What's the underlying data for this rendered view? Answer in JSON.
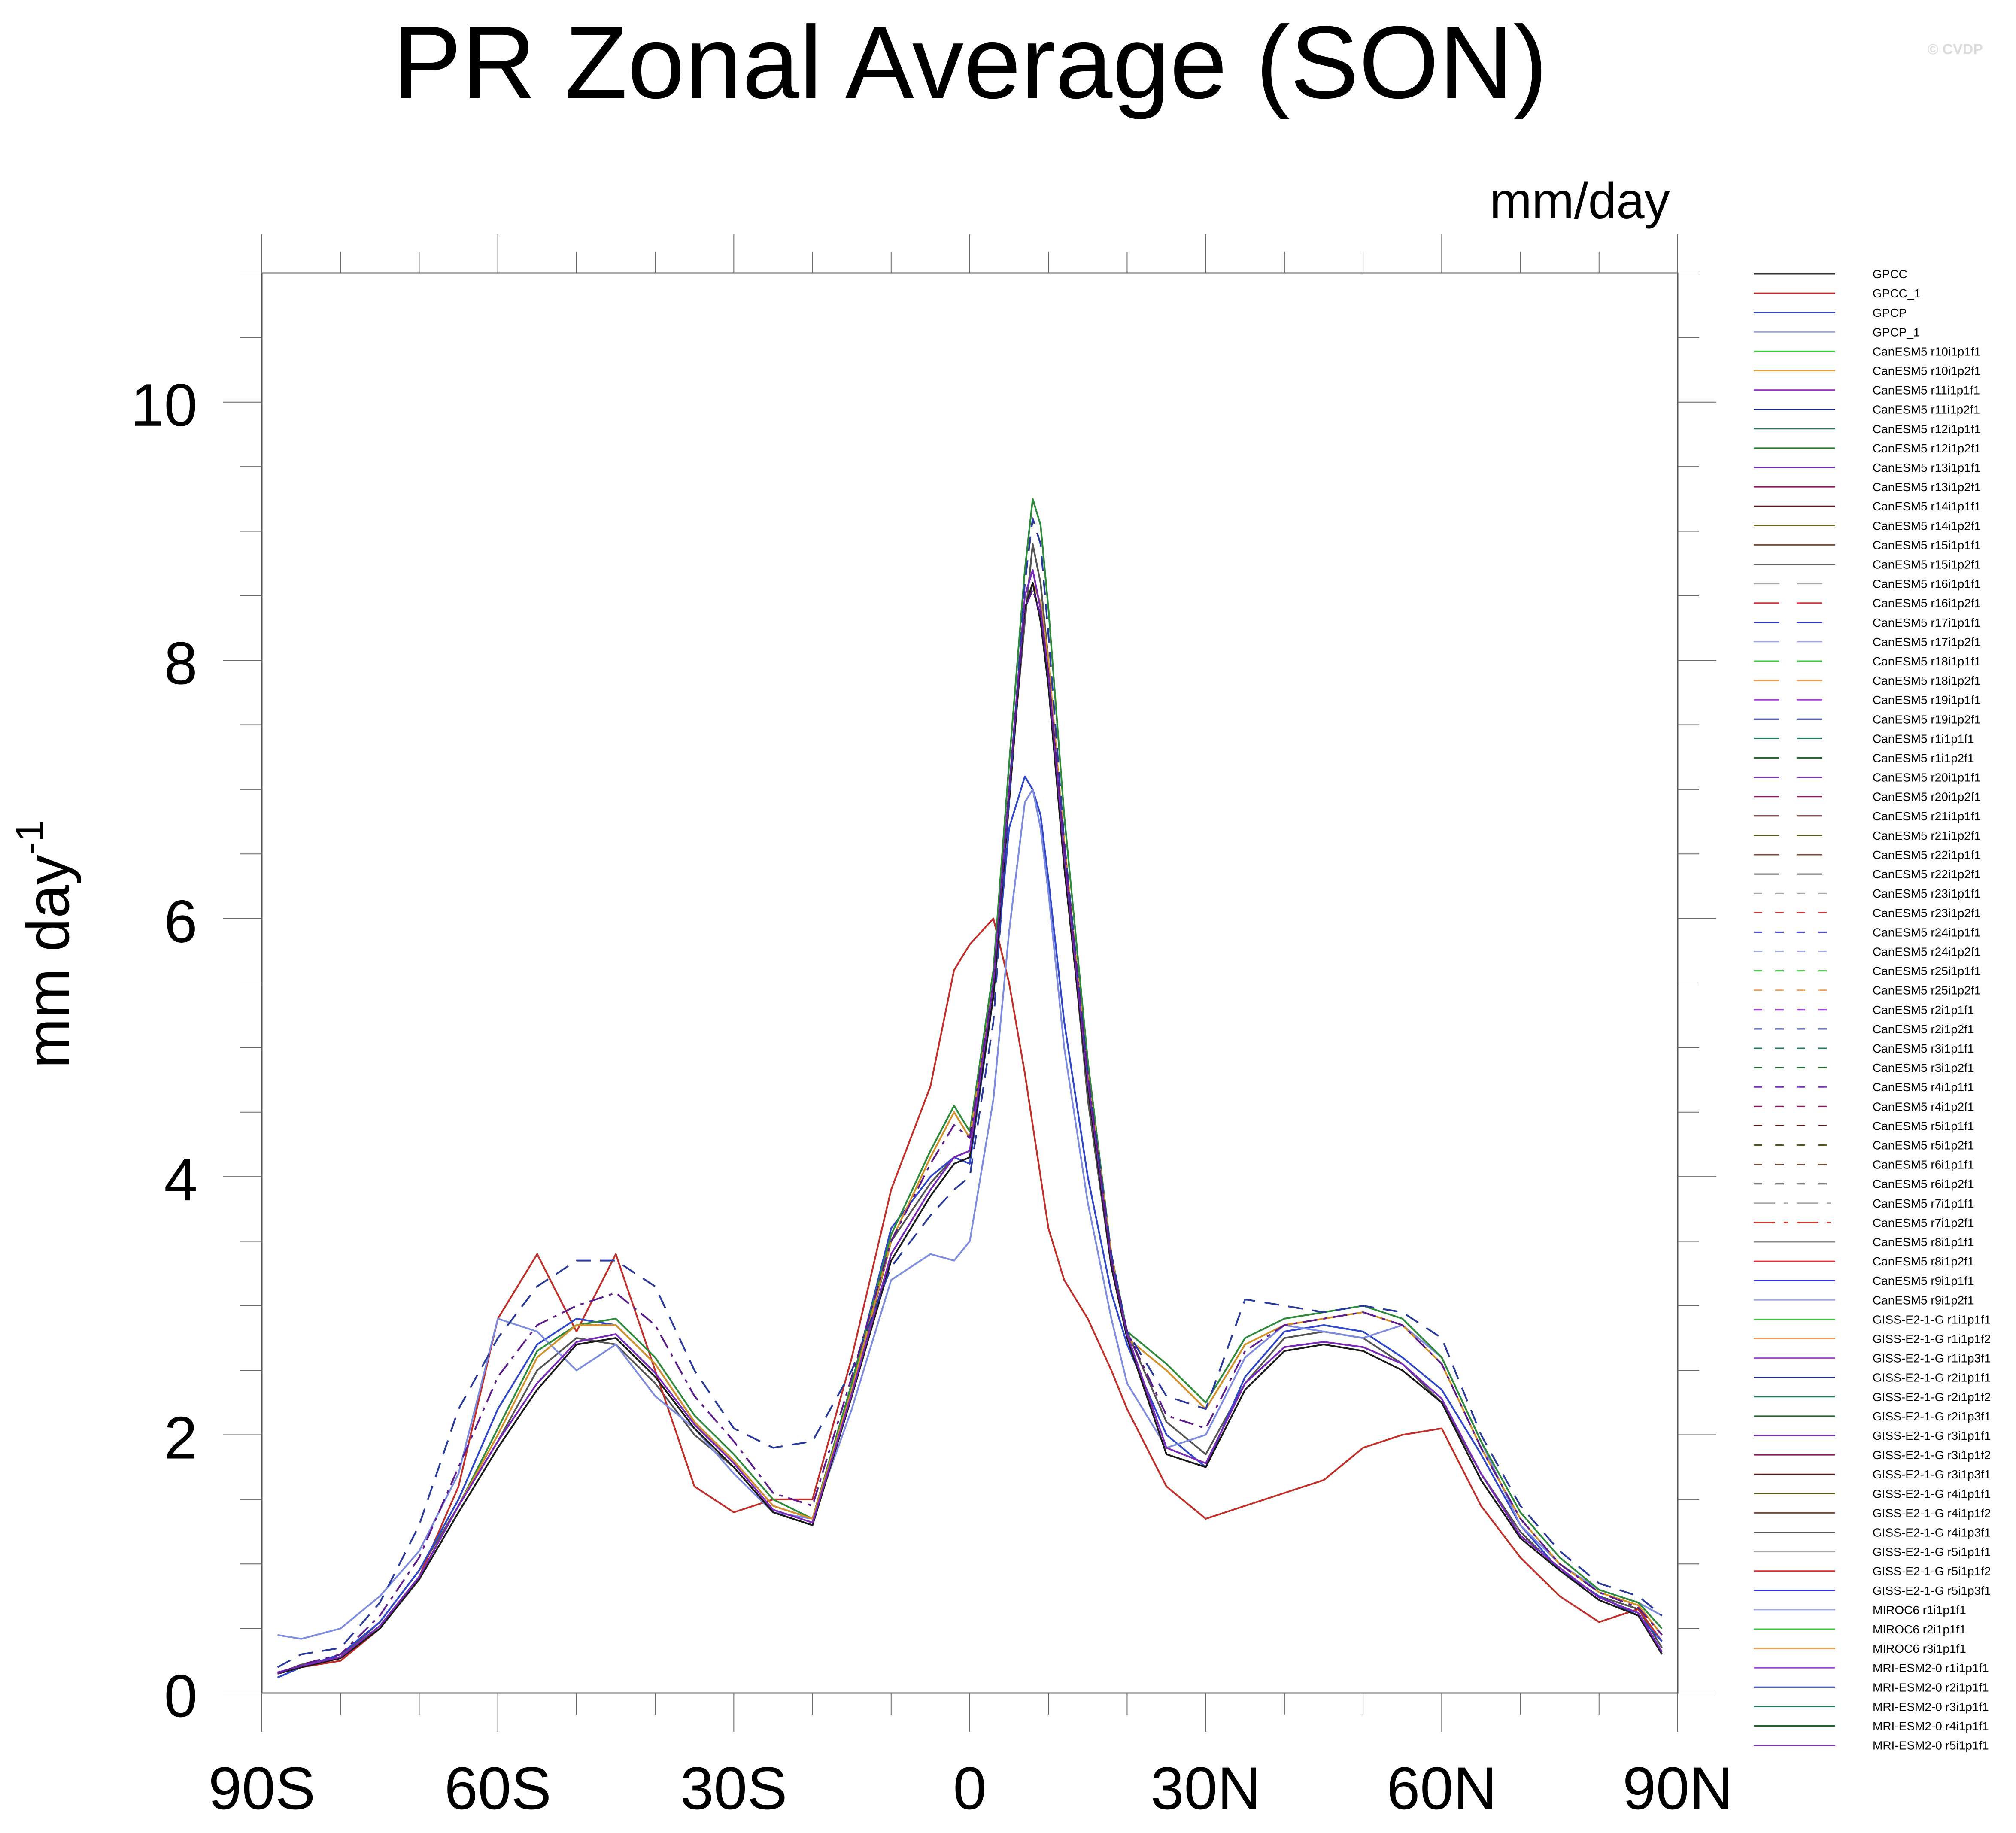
{
  "title": "PR Zonal Average (SON)",
  "watermark": "© CVDP",
  "units": "mm/day",
  "chart_data": {
    "type": "line",
    "title": "PR Zonal Average (SON)",
    "subtitle": "mm/day",
    "ylabel": "mm day",
    "ylabel_exponent": "-1",
    "xlabel": "",
    "xlim": [
      -90,
      90
    ],
    "ylim": [
      0,
      11
    ],
    "x_ticks": [
      {
        "value": -90,
        "label": "90S"
      },
      {
        "value": -60,
        "label": "60S"
      },
      {
        "value": -30,
        "label": "30S"
      },
      {
        "value": 0,
        "label": "0"
      },
      {
        "value": 30,
        "label": "30N"
      },
      {
        "value": 60,
        "label": "60N"
      },
      {
        "value": 90,
        "label": "90N"
      }
    ],
    "y_ticks": [
      {
        "value": 0,
        "label": "0"
      },
      {
        "value": 2,
        "label": "2"
      },
      {
        "value": 4,
        "label": "4"
      },
      {
        "value": 6,
        "label": "6"
      },
      {
        "value": 8,
        "label": "8"
      },
      {
        "value": 10,
        "label": "10"
      }
    ],
    "legend_position": "right",
    "x": [
      -88,
      -85,
      -80,
      -75,
      -70,
      -65,
      -60,
      -55,
      -50,
      -45,
      -40,
      -35,
      -30,
      -25,
      -20,
      -15,
      -10,
      -5,
      -2,
      0,
      3,
      5,
      7,
      8,
      9,
      10,
      12,
      15,
      18,
      20,
      25,
      30,
      35,
      40,
      45,
      50,
      55,
      60,
      65,
      70,
      75,
      80,
      85,
      88
    ],
    "series": [
      {
        "name": "GPCC",
        "color": "#555555",
        "dash": "",
        "values": [
          0.15,
          0.22,
          0.28,
          0.55,
          0.95,
          1.45,
          1.95,
          2.5,
          2.75,
          2.7,
          2.4,
          2.0,
          1.75,
          1.4,
          1.3,
          2.3,
          3.5,
          3.95,
          4.15,
          4.2,
          5.5,
          7.0,
          8.3,
          8.9,
          8.6,
          8.0,
          6.5,
          4.6,
          3.3,
          2.8,
          2.1,
          1.85,
          2.4,
          2.75,
          2.8,
          2.75,
          2.55,
          2.25,
          1.7,
          1.25,
          0.95,
          0.75,
          0.65,
          0.35
        ]
      },
      {
        "name": "GPCC_1",
        "color": "#c0302a",
        "dash": "",
        "values": [
          0.15,
          0.2,
          0.25,
          0.5,
          0.9,
          1.6,
          2.9,
          3.4,
          2.8,
          3.4,
          2.5,
          1.6,
          1.4,
          1.5,
          1.5,
          2.6,
          3.9,
          4.7,
          5.6,
          5.8,
          6.0,
          5.5,
          4.8,
          4.4,
          4.0,
          3.6,
          3.2,
          2.9,
          2.5,
          2.2,
          1.6,
          1.35,
          1.45,
          1.55,
          1.65,
          1.9,
          2.0,
          2.05,
          1.45,
          1.05,
          0.75,
          0.55,
          0.65,
          0.4
        ]
      },
      {
        "name": "GPCP",
        "color": "#3048c8",
        "dash": "",
        "values": [
          0.12,
          0.2,
          0.3,
          0.55,
          0.95,
          1.5,
          2.2,
          2.7,
          2.9,
          2.85,
          2.55,
          2.1,
          1.8,
          1.45,
          1.35,
          2.4,
          3.6,
          4.0,
          4.15,
          4.1,
          5.4,
          6.7,
          7.1,
          7.0,
          6.8,
          6.3,
          5.2,
          4.0,
          3.1,
          2.7,
          2.0,
          1.75,
          2.45,
          2.8,
          2.85,
          2.8,
          2.6,
          2.35,
          1.85,
          1.3,
          0.95,
          0.75,
          0.6,
          0.4
        ]
      },
      {
        "name": "GPCP_1",
        "color": "#7e8ce0",
        "dash": "",
        "values": [
          0.45,
          0.42,
          0.5,
          0.75,
          1.1,
          1.7,
          2.9,
          2.8,
          2.5,
          2.7,
          2.3,
          2.05,
          1.7,
          1.4,
          1.35,
          2.2,
          3.2,
          3.4,
          3.35,
          3.5,
          4.6,
          5.9,
          6.9,
          7.0,
          6.7,
          6.2,
          5.0,
          3.8,
          2.9,
          2.4,
          1.9,
          2.0,
          2.6,
          2.85,
          2.8,
          2.75,
          2.85,
          2.6,
          1.95,
          1.3,
          1.0,
          0.8,
          0.7,
          0.6
        ]
      },
      {
        "name": "CanESM5 r1i1p1f1",
        "color": "#2e8b3c",
        "dash": "",
        "values": [
          0.15,
          0.2,
          0.28,
          0.5,
          0.9,
          1.45,
          2.05,
          2.65,
          2.85,
          2.9,
          2.6,
          2.15,
          1.85,
          1.5,
          1.35,
          2.4,
          3.55,
          4.2,
          4.55,
          4.35,
          5.6,
          7.2,
          8.7,
          9.25,
          9.05,
          8.4,
          6.8,
          4.9,
          3.4,
          2.8,
          2.55,
          2.25,
          2.75,
          2.9,
          2.95,
          3.0,
          2.9,
          2.6,
          1.95,
          1.4,
          1.05,
          0.8,
          0.7,
          0.5
        ]
      },
      {
        "name": "CanESM5 r1i1p2f1",
        "color": "#d4902a",
        "dash": "",
        "values": [
          0.15,
          0.2,
          0.28,
          0.52,
          0.9,
          1.45,
          2.0,
          2.6,
          2.85,
          2.85,
          2.55,
          2.1,
          1.8,
          1.45,
          1.35,
          2.35,
          3.5,
          4.15,
          4.5,
          4.3,
          5.5,
          7.0,
          8.4,
          8.6,
          8.45,
          8.0,
          6.6,
          4.8,
          3.4,
          2.75,
          2.5,
          2.2,
          2.7,
          2.85,
          2.9,
          2.95,
          2.85,
          2.55,
          1.9,
          1.35,
          1.0,
          0.78,
          0.68,
          0.45
        ]
      },
      {
        "name": "GISS-E2-1-G r1i1p1f1",
        "color": "#1a1a1a",
        "dash": "",
        "values": [
          0.15,
          0.2,
          0.27,
          0.5,
          0.88,
          1.4,
          1.9,
          2.35,
          2.7,
          2.75,
          2.45,
          2.05,
          1.75,
          1.4,
          1.3,
          2.3,
          3.35,
          3.85,
          4.1,
          4.15,
          5.4,
          6.9,
          8.4,
          8.6,
          8.3,
          7.8,
          6.4,
          4.7,
          3.3,
          2.75,
          1.85,
          1.75,
          2.35,
          2.65,
          2.7,
          2.65,
          2.5,
          2.25,
          1.65,
          1.2,
          0.95,
          0.72,
          0.6,
          0.3
        ]
      },
      {
        "name": "GISS-E2-1-G r2i1p1f1",
        "color": "#7a2ab8",
        "dash": "",
        "values": [
          0.16,
          0.21,
          0.28,
          0.52,
          0.9,
          1.45,
          1.95,
          2.4,
          2.72,
          2.78,
          2.48,
          2.08,
          1.78,
          1.42,
          1.32,
          2.32,
          3.4,
          3.9,
          4.15,
          4.2,
          5.5,
          7.0,
          8.5,
          8.7,
          8.4,
          7.9,
          6.5,
          4.75,
          3.35,
          2.78,
          1.9,
          1.78,
          2.4,
          2.68,
          2.72,
          2.68,
          2.55,
          2.28,
          1.7,
          1.22,
          0.97,
          0.74,
          0.62,
          0.32
        ]
      },
      {
        "name": "MIROC6 r1i1p1f1",
        "color": "#2a3a9a",
        "dash": "34,22",
        "values": [
          0.2,
          0.3,
          0.35,
          0.7,
          1.3,
          2.2,
          2.75,
          3.15,
          3.35,
          3.35,
          3.15,
          2.5,
          2.05,
          1.9,
          1.95,
          2.5,
          3.3,
          3.7,
          3.9,
          4.0,
          5.2,
          6.9,
          8.6,
          9.1,
          8.9,
          8.2,
          6.6,
          4.8,
          3.4,
          2.8,
          2.3,
          2.2,
          3.05,
          3.0,
          2.95,
          3.0,
          2.95,
          2.75,
          2.0,
          1.45,
          1.1,
          0.85,
          0.75,
          0.6
        ]
      },
      {
        "name": "MRI-ESM2-0 r1i1p1f1",
        "color": "#5b1d8c",
        "dash": "34,14,8,14",
        "values": [
          0.15,
          0.22,
          0.3,
          0.6,
          1.05,
          1.75,
          2.45,
          2.85,
          3.0,
          3.1,
          2.85,
          2.3,
          1.95,
          1.55,
          1.45,
          2.45,
          3.5,
          4.1,
          4.4,
          4.3,
          5.5,
          7.0,
          8.4,
          8.55,
          8.35,
          7.9,
          6.55,
          4.8,
          3.35,
          2.8,
          2.15,
          2.05,
          2.65,
          2.85,
          2.9,
          2.95,
          2.85,
          2.55,
          1.9,
          1.35,
          1.0,
          0.78,
          0.66,
          0.45
        ]
      }
    ],
    "legend_entries": [
      {
        "label": "GPCC",
        "color": "#333333",
        "dash": ""
      },
      {
        "label": "GPCC_1",
        "color": "#c0302a",
        "dash": ""
      },
      {
        "label": "GPCP",
        "color": "#3048c8",
        "dash": ""
      },
      {
        "label": "GPCP_1",
        "color": "#9aa4e0",
        "dash": ""
      },
      {
        "label": "CanESM5 r10i1p1f1",
        "color": "#3cc83c",
        "dash": ""
      },
      {
        "label": "CanESM5 r10i1p2f1",
        "color": "#e0a040",
        "dash": ""
      },
      {
        "label": "CanESM5 r11i1p1f1",
        "color": "#9b30d0",
        "dash": ""
      },
      {
        "label": "CanESM5 r11i1p2f1",
        "color": "#1c2a8a",
        "dash": ""
      },
      {
        "label": "CanESM5 r12i1p1f1",
        "color": "#2a7a5a",
        "dash": ""
      },
      {
        "label": "CanESM5 r12i1p2f1",
        "color": "#1f7a2a",
        "dash": ""
      },
      {
        "label": "CanESM5 r13i1p1f1",
        "color": "#6a2ab0",
        "dash": ""
      },
      {
        "label": "CanESM5 r13i1p2f1",
        "color": "#8a1a5a",
        "dash": ""
      },
      {
        "label": "CanESM5 r14i1p1f1",
        "color": "#5a1a1a",
        "dash": ""
      },
      {
        "label": "CanESM5 r14i1p2f1",
        "color": "#6a6a1a",
        "dash": ""
      },
      {
        "label": "CanESM5 r15i1p1f1",
        "color": "#7a4a3a",
        "dash": ""
      },
      {
        "label": "CanESM5 r15i1p2f1",
        "color": "#6a6a6a",
        "dash": ""
      },
      {
        "label": "CanESM5 r16i1p1f1",
        "color": "#aaaaaa",
        "dash": "60,40"
      },
      {
        "label": "CanESM5 r16i1p2f1",
        "color": "#e03030",
        "dash": "60,40"
      },
      {
        "label": "CanESM5 r17i1p1f1",
        "color": "#3030e0",
        "dash": "60,40"
      },
      {
        "label": "CanESM5 r17i1p2f1",
        "color": "#a0a8e8",
        "dash": "60,40"
      },
      {
        "label": "CanESM5 r18i1p1f1",
        "color": "#3cc83c",
        "dash": "60,40"
      },
      {
        "label": "CanESM5 r18i1p2f1",
        "color": "#f0a050",
        "dash": "60,40"
      },
      {
        "label": "CanESM5 r19i1p1f1",
        "color": "#a040e0",
        "dash": "60,40"
      },
      {
        "label": "CanESM5 r19i1p2f1",
        "color": "#1c2a8a",
        "dash": "60,40"
      },
      {
        "label": "CanESM5 r1i1p1f1",
        "color": "#2a7a5a",
        "dash": "60,40"
      },
      {
        "label": "CanESM5 r1i1p2f1",
        "color": "#1f6a2a",
        "dash": "60,40"
      },
      {
        "label": "CanESM5 r20i1p1f1",
        "color": "#7a30c0",
        "dash": "60,40"
      },
      {
        "label": "CanESM5 r20i1p2f1",
        "color": "#8a1a5a",
        "dash": "60,40"
      },
      {
        "label": "CanESM5 r21i1p1f1",
        "color": "#5a1a1a",
        "dash": "60,40"
      },
      {
        "label": "CanESM5 r21i1p2f1",
        "color": "#5a5a1a",
        "dash": "60,40"
      },
      {
        "label": "CanESM5 r22i1p1f1",
        "color": "#7a4a3a",
        "dash": "60,40"
      },
      {
        "label": "CanESM5 r22i1p2f1",
        "color": "#5a5a5a",
        "dash": "60,40"
      },
      {
        "label": "CanESM5 r23i1p1f1",
        "color": "#aaaaaa",
        "dash": "20,30"
      },
      {
        "label": "CanESM5 r23i1p2f1",
        "color": "#e03030",
        "dash": "20,30"
      },
      {
        "label": "CanESM5 r24i1p1f1",
        "color": "#3030e0",
        "dash": "20,30"
      },
      {
        "label": "CanESM5 r24i1p2f1",
        "color": "#a0a8e8",
        "dash": "20,30"
      },
      {
        "label": "CanESM5 r25i1p1f1",
        "color": "#3cc83c",
        "dash": "20,30"
      },
      {
        "label": "CanESM5 r25i1p2f1",
        "color": "#f0a050",
        "dash": "20,30"
      },
      {
        "label": "CanESM5 r2i1p1f1",
        "color": "#a040e0",
        "dash": "20,30"
      },
      {
        "label": "CanESM5 r2i1p2f1",
        "color": "#1c2a8a",
        "dash": "20,30"
      },
      {
        "label": "CanESM5 r3i1p1f1",
        "color": "#2a7a5a",
        "dash": "20,30"
      },
      {
        "label": "CanESM5 r3i1p2f1",
        "color": "#1f6a2a",
        "dash": "20,30"
      },
      {
        "label": "CanESM5 r4i1p1f1",
        "color": "#7a30c0",
        "dash": "20,30"
      },
      {
        "label": "CanESM5 r4i1p2f1",
        "color": "#8a1a5a",
        "dash": "20,30"
      },
      {
        "label": "CanESM5 r5i1p1f1",
        "color": "#5a1a1a",
        "dash": "20,30"
      },
      {
        "label": "CanESM5 r5i1p2f1",
        "color": "#5a5a1a",
        "dash": "20,30"
      },
      {
        "label": "CanESM5 r6i1p1f1",
        "color": "#7a4a3a",
        "dash": "20,30"
      },
      {
        "label": "CanESM5 r6i1p2f1",
        "color": "#5a5a5a",
        "dash": "20,30"
      },
      {
        "label": "CanESM5 r7i1p1f1",
        "color": "#aaaaaa",
        "dash": "50,20,10,20"
      },
      {
        "label": "CanESM5 r7i1p2f1",
        "color": "#e03030",
        "dash": "50,20,10,20"
      },
      {
        "label": "CanESM5 r8i1p1f1",
        "color": "#888888",
        "dash": ""
      },
      {
        "label": "CanESM5 r8i1p2f1",
        "color": "#e03030",
        "dash": ""
      },
      {
        "label": "CanESM5 r9i1p1f1",
        "color": "#3030e0",
        "dash": ""
      },
      {
        "label": "CanESM5 r9i1p2f1",
        "color": "#a0a8e8",
        "dash": ""
      },
      {
        "label": "GISS-E2-1-G r1i1p1f1",
        "color": "#3cc83c",
        "dash": ""
      },
      {
        "label": "GISS-E2-1-G r1i1p1f2",
        "color": "#f0a050",
        "dash": ""
      },
      {
        "label": "GISS-E2-1-G r1i1p3f1",
        "color": "#a040e0",
        "dash": ""
      },
      {
        "label": "GISS-E2-1-G r2i1p1f1",
        "color": "#1c2a8a",
        "dash": ""
      },
      {
        "label": "GISS-E2-1-G r2i1p1f2",
        "color": "#2a7a5a",
        "dash": ""
      },
      {
        "label": "GISS-E2-1-G r2i1p3f1",
        "color": "#1f6a2a",
        "dash": ""
      },
      {
        "label": "GISS-E2-1-G r3i1p1f1",
        "color": "#7a30c0",
        "dash": ""
      },
      {
        "label": "GISS-E2-1-G r3i1p1f2",
        "color": "#8a1a5a",
        "dash": ""
      },
      {
        "label": "GISS-E2-1-G r3i1p3f1",
        "color": "#5a1a1a",
        "dash": ""
      },
      {
        "label": "GISS-E2-1-G r4i1p1f1",
        "color": "#5a5a1a",
        "dash": ""
      },
      {
        "label": "GISS-E2-1-G r4i1p1f2",
        "color": "#7a4a3a",
        "dash": ""
      },
      {
        "label": "GISS-E2-1-G r4i1p3f1",
        "color": "#5a5a5a",
        "dash": ""
      },
      {
        "label": "GISS-E2-1-G r5i1p1f1",
        "color": "#aaaaaa",
        "dash": ""
      },
      {
        "label": "GISS-E2-1-G r5i1p1f2",
        "color": "#e03030",
        "dash": ""
      },
      {
        "label": "GISS-E2-1-G r5i1p3f1",
        "color": "#3030e0",
        "dash": ""
      },
      {
        "label": "MIROC6 r1i1p1f1",
        "color": "#a0a8e8",
        "dash": ""
      },
      {
        "label": "MIROC6 r2i1p1f1",
        "color": "#3cc83c",
        "dash": ""
      },
      {
        "label": "MIROC6 r3i1p1f1",
        "color": "#f0a050",
        "dash": ""
      },
      {
        "label": "MRI-ESM2-0 r1i1p1f1",
        "color": "#a040e0",
        "dash": ""
      },
      {
        "label": "MRI-ESM2-0 r2i1p1f1",
        "color": "#1c2a8a",
        "dash": ""
      },
      {
        "label": "MRI-ESM2-0 r3i1p1f1",
        "color": "#2a7a5a",
        "dash": ""
      },
      {
        "label": "MRI-ESM2-0 r4i1p1f1",
        "color": "#1f6a2a",
        "dash": ""
      },
      {
        "label": "MRI-ESM2-0 r5i1p1f1",
        "color": "#7a30c0",
        "dash": ""
      }
    ]
  }
}
